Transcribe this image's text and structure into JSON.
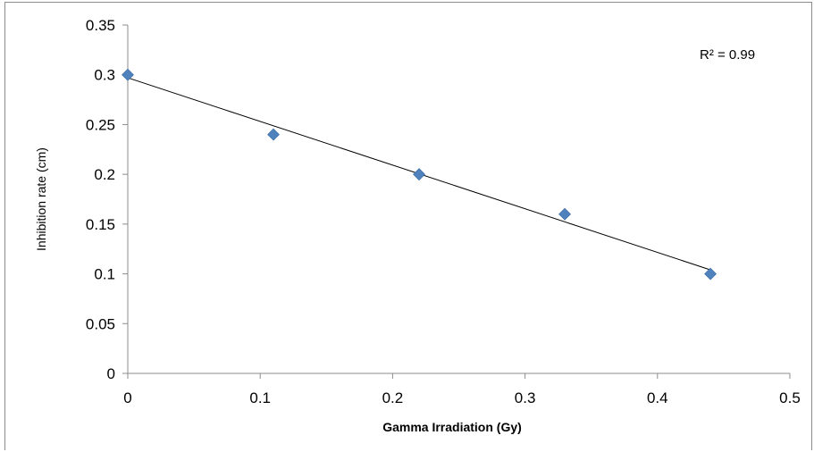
{
  "chart_data": {
    "type": "scatter",
    "xlabel": "Gamma Irradiation (Gy)",
    "ylabel": "Inhibition rate (cm)",
    "xlim": [
      0,
      0.5
    ],
    "ylim": [
      0,
      0.35
    ],
    "xticks": [
      "0",
      "0.1",
      "0.2",
      "0.3",
      "0.4",
      "0.5"
    ],
    "yticks": [
      "0",
      "0.05",
      "0.1",
      "0.15",
      "0.2",
      "0.25",
      "0.3",
      "0.35"
    ],
    "grid": false,
    "legend": "none",
    "series": [
      {
        "x": [
          0,
          0.11,
          0.22,
          0.33,
          0.44
        ],
        "y": [
          0.3,
          0.24,
          0.2,
          0.16,
          0.1
        ],
        "marker": "diamond",
        "color": "#4f81bd"
      }
    ],
    "trendline": {
      "type": "linear",
      "x": [
        0,
        0.44
      ],
      "y": [
        0.297,
        0.104
      ],
      "color": "#000000"
    },
    "annotations": [
      {
        "text": "R² = 0.99"
      }
    ]
  }
}
